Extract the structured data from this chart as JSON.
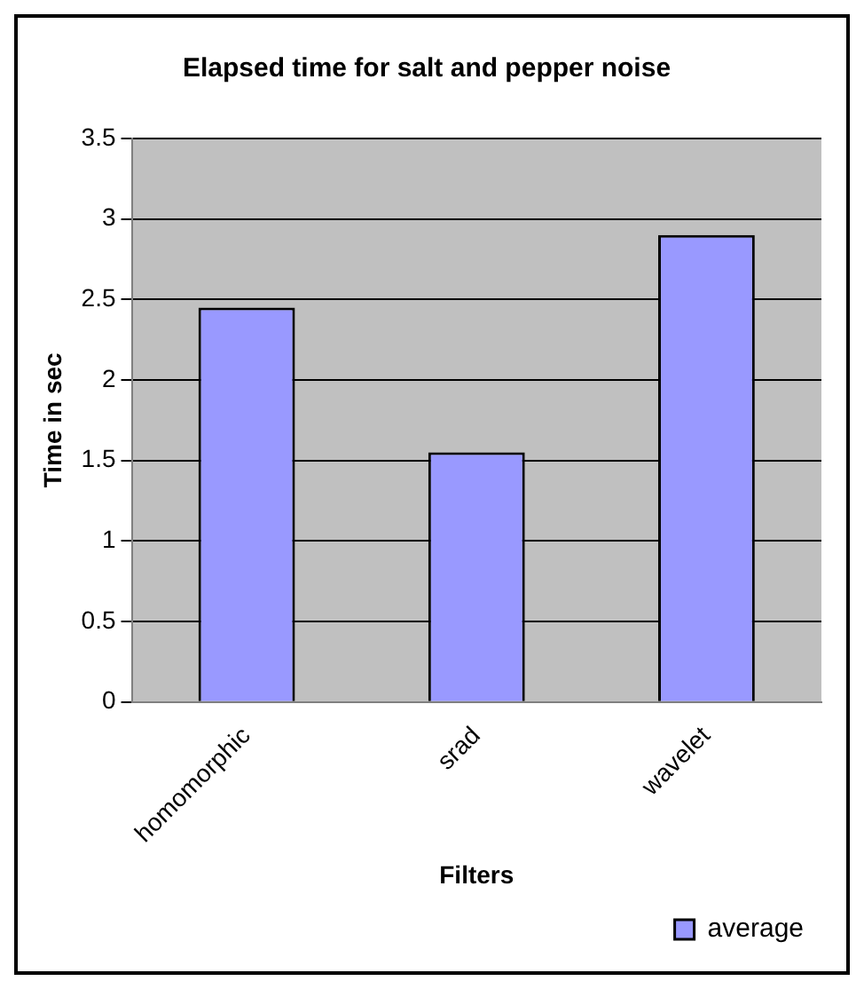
{
  "chart_data": {
    "type": "bar",
    "title": "Elapsed time for salt and pepper noise",
    "xlabel": "Filters",
    "ylabel": "Time in sec",
    "categories": [
      "homomorphic",
      "srad",
      "wavelet"
    ],
    "series": [
      {
        "name": "average",
        "color": "#9999ff",
        "values": [
          2.45,
          1.55,
          2.9
        ]
      }
    ],
    "ylim": [
      0,
      3.5
    ],
    "yticks": [
      0,
      0.5,
      1,
      1.5,
      2,
      2.5,
      3,
      3.5
    ],
    "grid": "y",
    "legend": "bottom right"
  }
}
